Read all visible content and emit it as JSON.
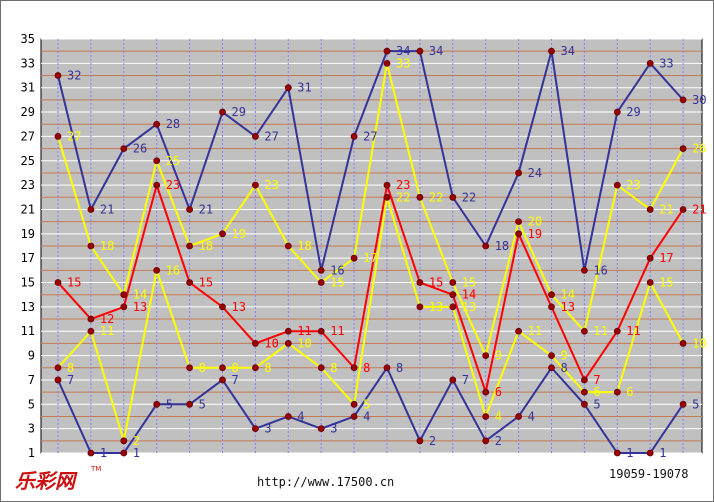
{
  "chart_data": {
    "type": "line",
    "x_count": 20,
    "ylim": [
      1,
      35
    ],
    "yticks": [
      1,
      3,
      5,
      7,
      9,
      11,
      13,
      15,
      17,
      19,
      21,
      23,
      25,
      27,
      29,
      31,
      33,
      35
    ],
    "grid": true,
    "series": [
      {
        "color": "#333399",
        "values": [
          32,
          21,
          26,
          28,
          21,
          29,
          27,
          31,
          16,
          27,
          34,
          34,
          22,
          18,
          24,
          34,
          16,
          29,
          33,
          30
        ]
      },
      {
        "color": "#ffff00",
        "values": [
          27,
          18,
          14,
          25,
          18,
          19,
          23,
          18,
          15,
          17,
          33,
          22,
          15,
          9,
          20,
          14,
          11,
          23,
          21,
          26
        ]
      },
      {
        "color": "#ff0000",
        "values": [
          15,
          12,
          13,
          23,
          15,
          13,
          10,
          11,
          11,
          8,
          23,
          15,
          14,
          6,
          19,
          13,
          7,
          11,
          17,
          21
        ]
      },
      {
        "color": "#ffff00",
        "values": [
          8,
          11,
          2,
          16,
          8,
          8,
          8,
          10,
          8,
          5,
          22,
          13,
          13,
          4,
          11,
          9,
          6,
          6,
          15,
          10
        ]
      },
      {
        "color": "#333399",
        "values": [
          7,
          1,
          1,
          5,
          5,
          7,
          3,
          4,
          3,
          4,
          8,
          2,
          7,
          2,
          4,
          8,
          5,
          1,
          1,
          5
        ]
      }
    ]
  },
  "footer": {
    "logo": "乐彩网",
    "logo_tm": "TM",
    "url": "http://www.17500.cn",
    "range": "19059-19078"
  }
}
